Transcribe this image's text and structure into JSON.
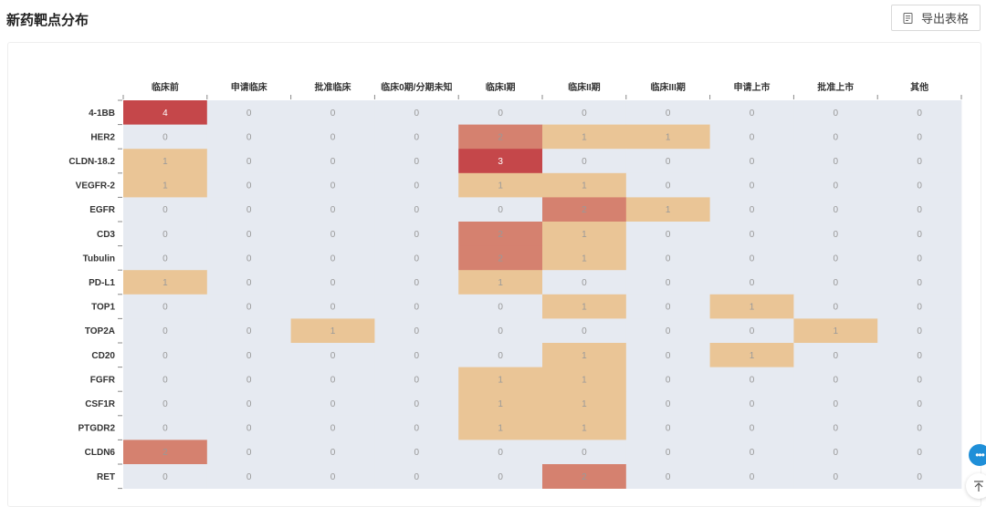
{
  "page": {
    "title": "新药靶点分布"
  },
  "toolbar": {
    "export_label": "导出表格",
    "export_icon": "export-icon"
  },
  "fabs": {
    "chat_icon": "chat-icon",
    "top_icon": "back-to-top-icon"
  },
  "chart_data": {
    "type": "heatmap",
    "x_categories": [
      "临床前",
      "申请临床",
      "批准临床",
      "临床0期/分期未知",
      "临床I期",
      "临床II期",
      "临床III期",
      "申请上市",
      "批准上市",
      "其他"
    ],
    "y_categories": [
      "4-1BB",
      "HER2",
      "CLDN-18.2",
      "VEGFR-2",
      "EGFR",
      "CD3",
      "Tubulin",
      "PD-L1",
      "TOP1",
      "TOP2A",
      "CD20",
      "FGFR",
      "CSF1R",
      "PTGDR2",
      "CLDN6",
      "RET"
    ],
    "values": [
      [
        4,
        0,
        0,
        0,
        0,
        0,
        0,
        0,
        0,
        0
      ],
      [
        0,
        0,
        0,
        0,
        2,
        1,
        1,
        0,
        0,
        0
      ],
      [
        1,
        0,
        0,
        0,
        3,
        0,
        0,
        0,
        0,
        0
      ],
      [
        1,
        0,
        0,
        0,
        1,
        1,
        0,
        0,
        0,
        0
      ],
      [
        0,
        0,
        0,
        0,
        0,
        2,
        1,
        0,
        0,
        0
      ],
      [
        0,
        0,
        0,
        0,
        2,
        1,
        0,
        0,
        0,
        0
      ],
      [
        0,
        0,
        0,
        0,
        2,
        1,
        0,
        0,
        0,
        0
      ],
      [
        1,
        0,
        0,
        0,
        1,
        0,
        0,
        0,
        0,
        0
      ],
      [
        0,
        0,
        0,
        0,
        0,
        1,
        0,
        1,
        0,
        0
      ],
      [
        0,
        0,
        1,
        0,
        0,
        0,
        0,
        0,
        1,
        0
      ],
      [
        0,
        0,
        0,
        0,
        0,
        1,
        0,
        1,
        0,
        0
      ],
      [
        0,
        0,
        0,
        0,
        1,
        1,
        0,
        0,
        0,
        0
      ],
      [
        0,
        0,
        0,
        0,
        1,
        1,
        0,
        0,
        0,
        0
      ],
      [
        0,
        0,
        0,
        0,
        1,
        1,
        0,
        0,
        0,
        0
      ],
      [
        2,
        0,
        0,
        0,
        0,
        0,
        0,
        0,
        0,
        0
      ],
      [
        0,
        0,
        0,
        0,
        0,
        2,
        0,
        0,
        0,
        0
      ]
    ],
    "color_scale": {
      "0": "#e6eaf1",
      "1": "#eac596",
      "2": "#d5816f",
      "3": "#c5474a",
      "4": "#c5474a"
    },
    "label_colors": {
      "dark": "#999999",
      "light": "#ffffff"
    }
  }
}
